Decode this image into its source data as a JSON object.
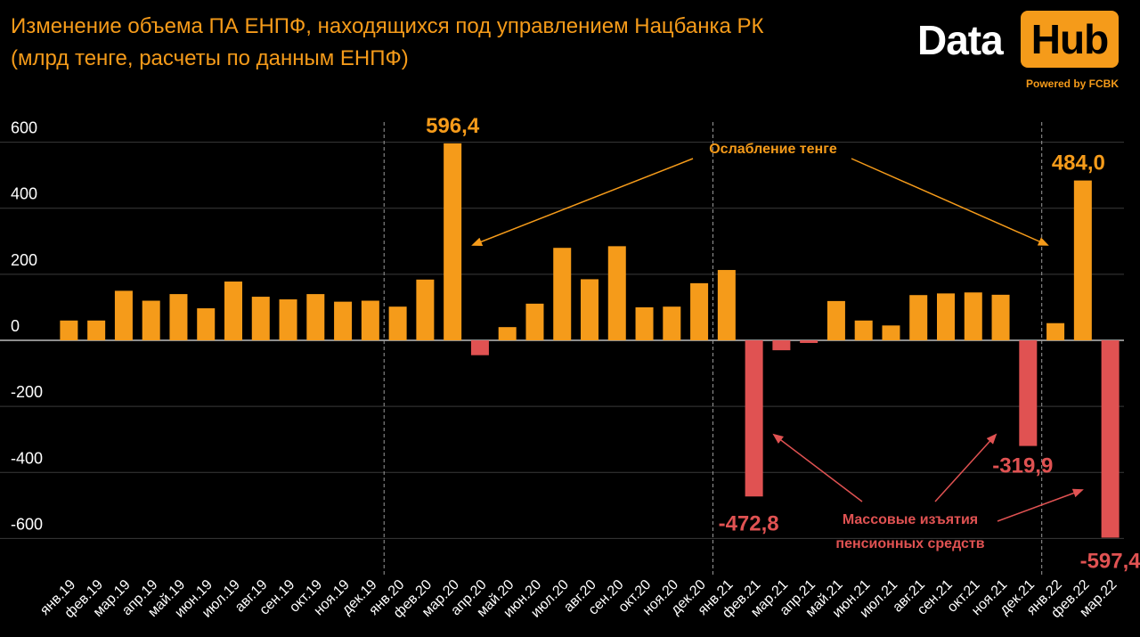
{
  "header": {
    "title_line1": "Изменение объема ПА ЕНПФ, находящихся под управлением Нацбанка РК",
    "title_line2": "(млрд тенге, расчеты по данным ЕНПФ)"
  },
  "logo": {
    "word1": "Data",
    "word2": "Hub",
    "tagline": "Powered by FCBK"
  },
  "colors": {
    "positive": "#f59b1a",
    "negative": "#e05252",
    "text_orange": "#f59b1a",
    "text_red": "#e05252",
    "grid": "#3a3a3a"
  },
  "chart_data": {
    "type": "bar",
    "title": "Изменение объема ПА ЕНПФ, находящихся под управлением Нацбанка РК",
    "subtitle": "(млрд тенге, расчеты по данным ЕНПФ)",
    "ylim": [
      -720,
      650
    ],
    "yticks": [
      -600,
      -400,
      -200,
      0,
      200,
      400,
      600
    ],
    "ytick_labels": [
      "-600",
      "-400",
      "-200",
      "0",
      "200",
      "400",
      "600"
    ],
    "grid": true,
    "year_separators_after": [
      "дек.19",
      "дек.20",
      "дек.21"
    ],
    "categories": [
      "янв.19",
      "фев.19",
      "мар.19",
      "апр.19",
      "май.19",
      "июн.19",
      "июл.19",
      "авг.19",
      "сен.19",
      "окт.19",
      "ноя.19",
      "дек.19",
      "янв.20",
      "фев.20",
      "мар.20",
      "апр.20",
      "май.20",
      "июн.20",
      "июл.20",
      "авг.20",
      "сен.20",
      "окт.20",
      "ноя.20",
      "дек.20",
      "янв.21",
      "фев.21",
      "мар.21",
      "апр.21",
      "май.21",
      "июн.21",
      "июл.21",
      "авг.21",
      "сен.21",
      "окт.21",
      "ноя.21",
      "дек.21",
      "янв.22",
      "фев.22",
      "мар.22"
    ],
    "values": [
      60,
      60,
      150,
      120,
      140,
      97,
      178,
      132,
      124,
      140,
      117,
      120,
      102,
      184,
      596.4,
      -45,
      40,
      111,
      280,
      185,
      285,
      100,
      102,
      173,
      213,
      -472.8,
      -30,
      -8,
      119,
      60,
      45,
      137,
      142,
      145,
      138,
      -319.9,
      52,
      484.0,
      -597.4
    ],
    "data_labels": [
      {
        "category": "мар.20",
        "text": "596,4",
        "color": "orange"
      },
      {
        "category": "фев.21",
        "text": "-472,8",
        "color": "red"
      },
      {
        "category": "дек.21",
        "text": "-319,9",
        "color": "red"
      },
      {
        "category": "фев.22",
        "text": "484,0",
        "color": "orange"
      },
      {
        "category": "мар.22",
        "text": "-597,4",
        "color": "red"
      }
    ],
    "annotations": [
      {
        "text": "Ослабление тенге",
        "color": "orange",
        "points_to": [
          "апр.20",
          "янв.22"
        ]
      },
      {
        "text_line1": "Массовые изъятия",
        "text_line2": "пенсионных средств",
        "color": "red",
        "points_to": [
          "мар.21",
          "дек.21",
          "мар.22"
        ]
      }
    ]
  }
}
